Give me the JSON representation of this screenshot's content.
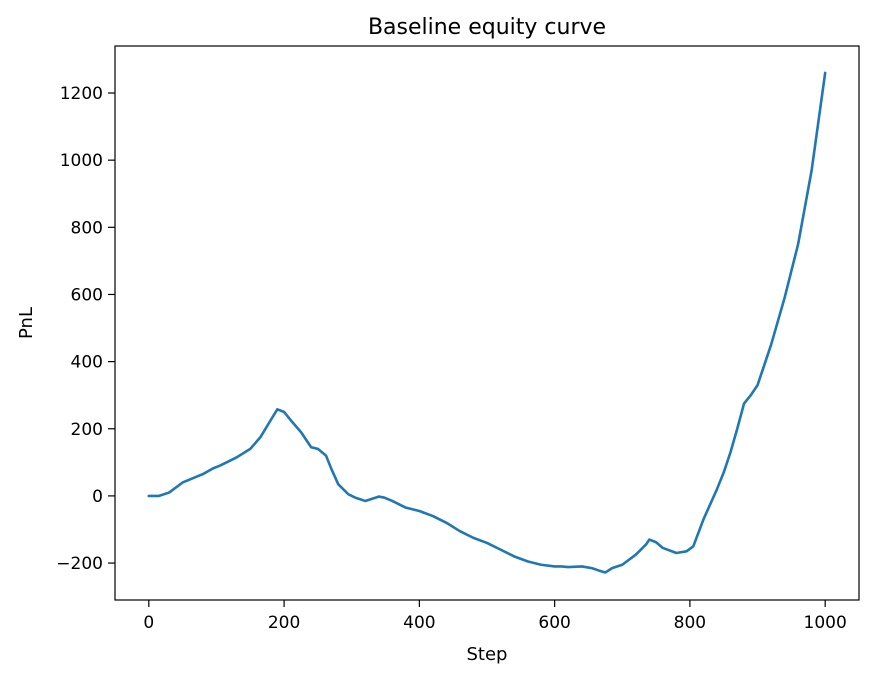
{
  "chart_data": {
    "type": "line",
    "title": "Baseline equity curve",
    "xlabel": "Step",
    "ylabel": "PnL",
    "xlim": [
      -50,
      1050
    ],
    "ylim": [
      -310,
      1340
    ],
    "xticks": [
      0,
      200,
      400,
      600,
      800,
      1000
    ],
    "yticks": [
      -200,
      0,
      200,
      400,
      600,
      800,
      1000,
      1200
    ],
    "xtick_labels": [
      "0",
      "200",
      "400",
      "600",
      "800",
      "1000"
    ],
    "ytick_labels": [
      "−200",
      "0",
      "200",
      "400",
      "600",
      "800",
      "1000",
      "1200"
    ],
    "grid": false,
    "series": [
      {
        "color": "#1f77b4",
        "x": [
          0,
          15,
          30,
          50,
          80,
          95,
          105,
          130,
          150,
          165,
          180,
          190,
          200,
          210,
          225,
          240,
          250,
          262,
          270,
          280,
          295,
          305,
          320,
          328,
          340,
          348,
          360,
          380,
          400,
          420,
          440,
          460,
          480,
          500,
          520,
          540,
          560,
          580,
          600,
          610,
          620,
          640,
          655,
          665,
          675,
          685,
          700,
          720,
          735,
          740,
          750,
          760,
          780,
          795,
          805,
          820,
          840,
          850,
          860,
          870,
          880,
          890,
          900,
          920,
          940,
          960,
          980,
          1000
        ],
        "y": [
          0,
          0,
          10,
          40,
          65,
          82,
          90,
          115,
          140,
          175,
          225,
          258,
          250,
          225,
          190,
          145,
          140,
          120,
          80,
          35,
          5,
          -5,
          -15,
          -10,
          -2,
          -5,
          -15,
          -35,
          -45,
          -60,
          -80,
          -105,
          -125,
          -140,
          -160,
          -180,
          -195,
          -205,
          -210,
          -210,
          -212,
          -210,
          -215,
          -222,
          -228,
          -215,
          -205,
          -175,
          -145,
          -130,
          -138,
          -155,
          -170,
          -165,
          -150,
          -70,
          20,
          70,
          130,
          200,
          275,
          300,
          330,
          450,
          590,
          750,
          970,
          1260
        ]
      }
    ]
  }
}
